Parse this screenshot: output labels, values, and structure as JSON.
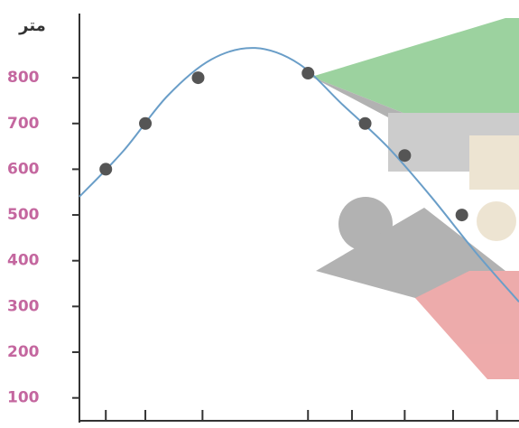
{
  "chart_data": {
    "type": "scatter",
    "y_label": "متر",
    "xlim": [
      0,
      10
    ],
    "ylim": [
      50,
      970
    ],
    "xticks": [
      0.6,
      1.5,
      2.8,
      5.2,
      6.2,
      7.4,
      8.5,
      9.5
    ],
    "yticks": [
      100,
      200,
      300,
      400,
      500,
      600,
      700,
      800
    ],
    "series": [
      {
        "type": "scatter",
        "color": "#555555",
        "x": [
          0.6,
          1.5,
          2.7,
          5.2,
          6.5,
          7.4,
          8.7
        ],
        "values": [
          600,
          700,
          800,
          810,
          700,
          630,
          500
        ]
      },
      {
        "type": "line",
        "color": "#6a9ec8",
        "x": [
          0,
          1,
          2,
          3,
          4,
          5,
          6,
          7,
          8,
          9,
          10
        ],
        "values": [
          540,
          640,
          760,
          840,
          865,
          830,
          740,
          650,
          540,
          420,
          310
        ]
      }
    ]
  }
}
